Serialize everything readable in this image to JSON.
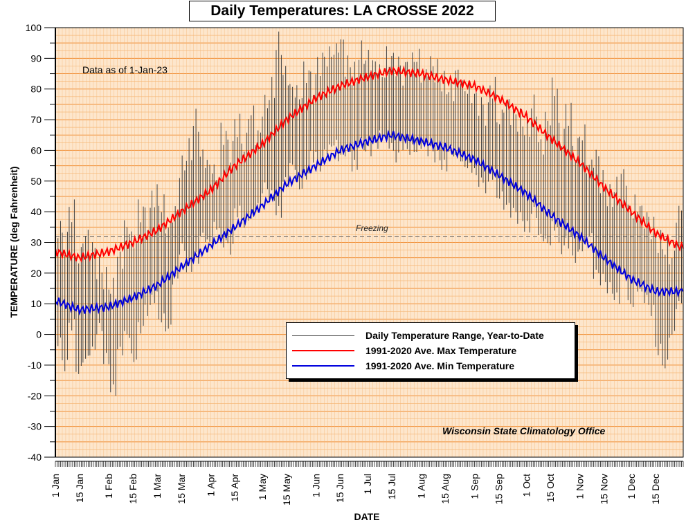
{
  "title": "Daily Temperatures: LA CROSSE 2022",
  "note": "Data as of 1-Jan-23",
  "freezing_label": "Freezing",
  "credit": "Wisconsin State Climatology Office",
  "chart_data": {
    "type": "line",
    "title": "Daily Temperatures: LA CROSSE 2022",
    "xlabel": "DATE",
    "ylabel": "TEMPERATURE (deg Fahrenheit)",
    "ylim": [
      -40,
      100
    ],
    "y_ticks": [
      100,
      90,
      80,
      70,
      60,
      50,
      40,
      30,
      20,
      10,
      0,
      -10,
      -20,
      -30,
      -40
    ],
    "x_ticks": [
      {
        "label": "1 Jan",
        "day": 1
      },
      {
        "label": "15 Jan",
        "day": 15
      },
      {
        "label": "1 Feb",
        "day": 32
      },
      {
        "label": "15 Feb",
        "day": 46
      },
      {
        "label": "1 Mar",
        "day": 60
      },
      {
        "label": "15 Mar",
        "day": 74
      },
      {
        "label": "1 Apr",
        "day": 91
      },
      {
        "label": "15 Apr",
        "day": 105
      },
      {
        "label": "1 May",
        "day": 121
      },
      {
        "label": "15 May",
        "day": 135
      },
      {
        "label": "1 Jun",
        "day": 152
      },
      {
        "label": "15 Jun",
        "day": 166
      },
      {
        "label": "1 Jul",
        "day": 182
      },
      {
        "label": "15 Jul",
        "day": 196
      },
      {
        "label": "1 Aug",
        "day": 213
      },
      {
        "label": "15 Aug",
        "day": 227
      },
      {
        "label": "1 Sep",
        "day": 244
      },
      {
        "label": "15 Sep",
        "day": 258
      },
      {
        "label": "1 Oct",
        "day": 274
      },
      {
        "label": "15 Oct",
        "day": 288
      },
      {
        "label": "1 Nov",
        "day": 305
      },
      {
        "label": "15 Nov",
        "day": 319
      },
      {
        "label": "1 Dec",
        "day": 335
      },
      {
        "label": "15 Dec",
        "day": 349
      }
    ],
    "freezing_line": 32,
    "grid": true,
    "legend_position": "center-right",
    "colors": {
      "background": "#fde6cc",
      "grid_major": "#f08c32",
      "grid_minor": "#f6b878",
      "range": "#404040",
      "max": "#ff0000",
      "min": "#0000dd"
    },
    "series": [
      {
        "name": "1991-2020 Ave. Max Temperature",
        "color": "#ff0000",
        "x": [
          1,
          15,
          32,
          46,
          60,
          74,
          91,
          105,
          121,
          135,
          152,
          166,
          182,
          196,
          213,
          227,
          244,
          258,
          274,
          288,
          305,
          319,
          335,
          349,
          365
        ],
        "values": [
          27,
          25,
          27,
          30,
          34,
          40,
          47,
          55,
          62,
          70,
          77,
          81,
          84,
          86,
          85,
          83,
          81,
          77,
          71,
          64,
          56,
          48,
          40,
          33,
          28
        ]
      },
      {
        "name": "1991-2020 Ave. Min Temperature",
        "color": "#0000dd",
        "x": [
          1,
          15,
          32,
          46,
          60,
          74,
          91,
          105,
          121,
          135,
          152,
          166,
          182,
          196,
          213,
          227,
          244,
          258,
          274,
          288,
          305,
          319,
          335,
          349,
          365
        ],
        "values": [
          11,
          8,
          9,
          12,
          16,
          22,
          29,
          35,
          42,
          49,
          55,
          60,
          63,
          65,
          63,
          61,
          57,
          52,
          46,
          39,
          32,
          25,
          18,
          14,
          14
        ]
      }
    ],
    "range_series": {
      "name": "Daily Temperature Range, Year-to-Date",
      "color": "#404040",
      "x": [
        1,
        5,
        9,
        13,
        17,
        21,
        25,
        29,
        33,
        37,
        41,
        45,
        49,
        53,
        57,
        61,
        65,
        69,
        73,
        77,
        81,
        85,
        89,
        93,
        97,
        101,
        105,
        109,
        113,
        117,
        121,
        125,
        129,
        133,
        137,
        141,
        145,
        149,
        153,
        157,
        161,
        165,
        169,
        173,
        177,
        181,
        185,
        189,
        193,
        197,
        201,
        205,
        209,
        213,
        217,
        221,
        225,
        229,
        233,
        237,
        241,
        245,
        249,
        253,
        257,
        261,
        265,
        269,
        273,
        277,
        281,
        285,
        289,
        293,
        297,
        301,
        305,
        309,
        313,
        317,
        321,
        325,
        329,
        333,
        337,
        341,
        345,
        349,
        353,
        357,
        361,
        365
      ],
      "low": [
        -2,
        -10,
        3,
        -12,
        -8,
        -5,
        2,
        -8,
        -18,
        -5,
        0,
        -8,
        2,
        8,
        12,
        5,
        2,
        18,
        28,
        22,
        25,
        32,
        30,
        35,
        30,
        28,
        40,
        36,
        38,
        42,
        48,
        45,
        40,
        50,
        55,
        48,
        52,
        58,
        55,
        60,
        62,
        58,
        60,
        55,
        62,
        60,
        62,
        65,
        62,
        58,
        62,
        60,
        60,
        62,
        60,
        58,
        55,
        60,
        58,
        55,
        54,
        50,
        48,
        52,
        45,
        42,
        40,
        38,
        35,
        40,
        32,
        30,
        35,
        28,
        30,
        25,
        28,
        32,
        20,
        18,
        15,
        12,
        20,
        10,
        15,
        12,
        8,
        -5,
        -10,
        0,
        10,
        20
      ],
      "high": [
        35,
        30,
        40,
        25,
        32,
        28,
        22,
        18,
        15,
        25,
        35,
        30,
        40,
        38,
        45,
        42,
        35,
        40,
        55,
        60,
        70,
        58,
        55,
        52,
        65,
        60,
        68,
        62,
        72,
        65,
        75,
        80,
        95,
        85,
        80,
        78,
        85,
        82,
        88,
        90,
        92,
        95,
        88,
        85,
        92,
        90,
        88,
        85,
        90,
        88,
        85,
        88,
        90,
        85,
        88,
        86,
        82,
        80,
        85,
        80,
        78,
        75,
        72,
        80,
        70,
        75,
        72,
        70,
        68,
        75,
        62,
        70,
        80,
        65,
        72,
        60,
        65,
        55,
        58,
        50,
        45,
        48,
        52,
        40,
        42,
        38,
        35,
        30,
        28,
        25,
        40,
        45
      ]
    }
  }
}
